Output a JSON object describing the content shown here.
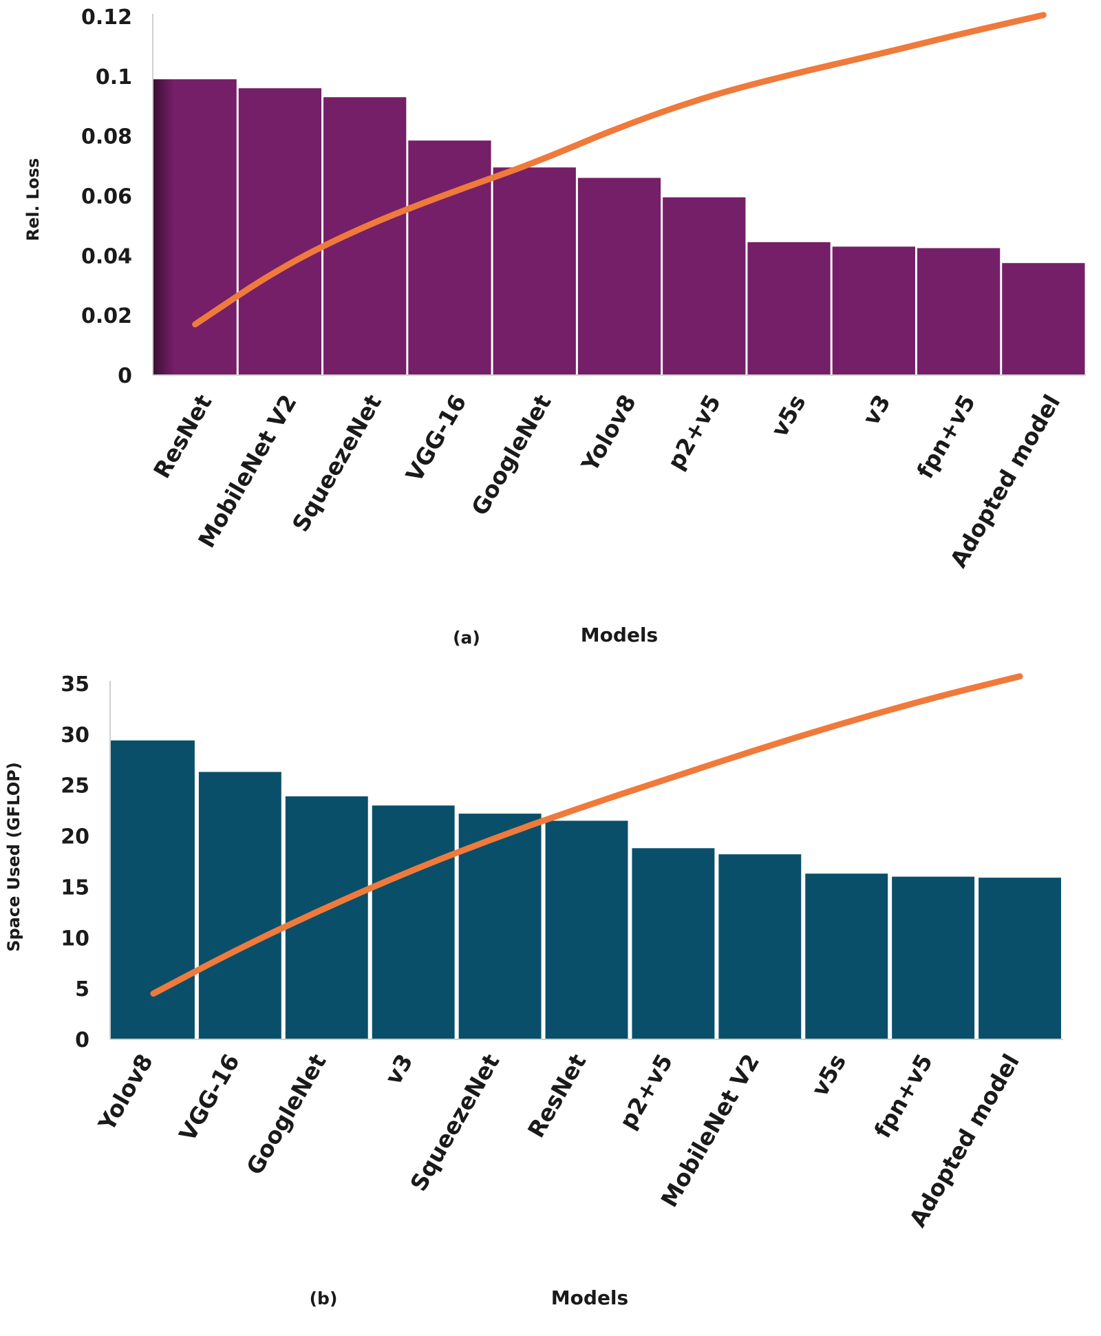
{
  "chart_data": [
    {
      "type": "bar",
      "panel_label": "(a)",
      "xlabel": "Models",
      "ylabel": "Rel. Loss",
      "ylim": [
        0,
        0.12
      ],
      "yticks": [
        "0",
        "0.02",
        "0.04",
        "0.06",
        "0.08",
        "0.1",
        "0.12"
      ],
      "categories": [
        "ResNet",
        "MobileNet V2",
        "SqueezeNet",
        "VGG-16",
        "GoogleNet",
        "Yolov8",
        "p2+v5",
        "v5s",
        "v3",
        "fpn+v5",
        "Adopted model"
      ],
      "values": [
        0.099,
        0.096,
        0.093,
        0.0785,
        0.0695,
        0.066,
        0.0595,
        0.0445,
        0.043,
        0.0425,
        0.0375
      ],
      "trendline": {
        "type": "line",
        "values": [
          0.017,
          0.036,
          0.05,
          0.061,
          0.071,
          0.083,
          0.093,
          0.1005,
          0.107,
          0.114,
          0.1205
        ]
      },
      "colors": {
        "bars": "#741F68",
        "line": "#EF7A3B"
      },
      "grid": false
    },
    {
      "type": "bar",
      "panel_label": "(b)",
      "xlabel": "Models",
      "ylabel": "Space Used (GFLOP)",
      "ylim": [
        0,
        35
      ],
      "yticks": [
        "0",
        "5",
        "10",
        "15",
        "20",
        "25",
        "30",
        "35"
      ],
      "categories": [
        "Yolov8",
        "VGG-16",
        "GoogleNet",
        "v3",
        "SqueezeNet",
        "ResNet",
        "p2+v5",
        "MobileNet V2",
        "v5s",
        "fpn+v5",
        "Adopted model"
      ],
      "values": [
        29.4,
        26.3,
        23.9,
        23.0,
        22.2,
        21.5,
        18.8,
        18.2,
        16.3,
        16.0,
        15.9
      ],
      "trendline": {
        "type": "line",
        "values": [
          4.5,
          9.0,
          13.0,
          16.7,
          20.0,
          23.0,
          25.8,
          28.6,
          31.2,
          33.6,
          35.7
        ]
      },
      "colors": {
        "bars": "#0A4F6A",
        "line": "#EF7A3B"
      },
      "grid": false
    }
  ]
}
